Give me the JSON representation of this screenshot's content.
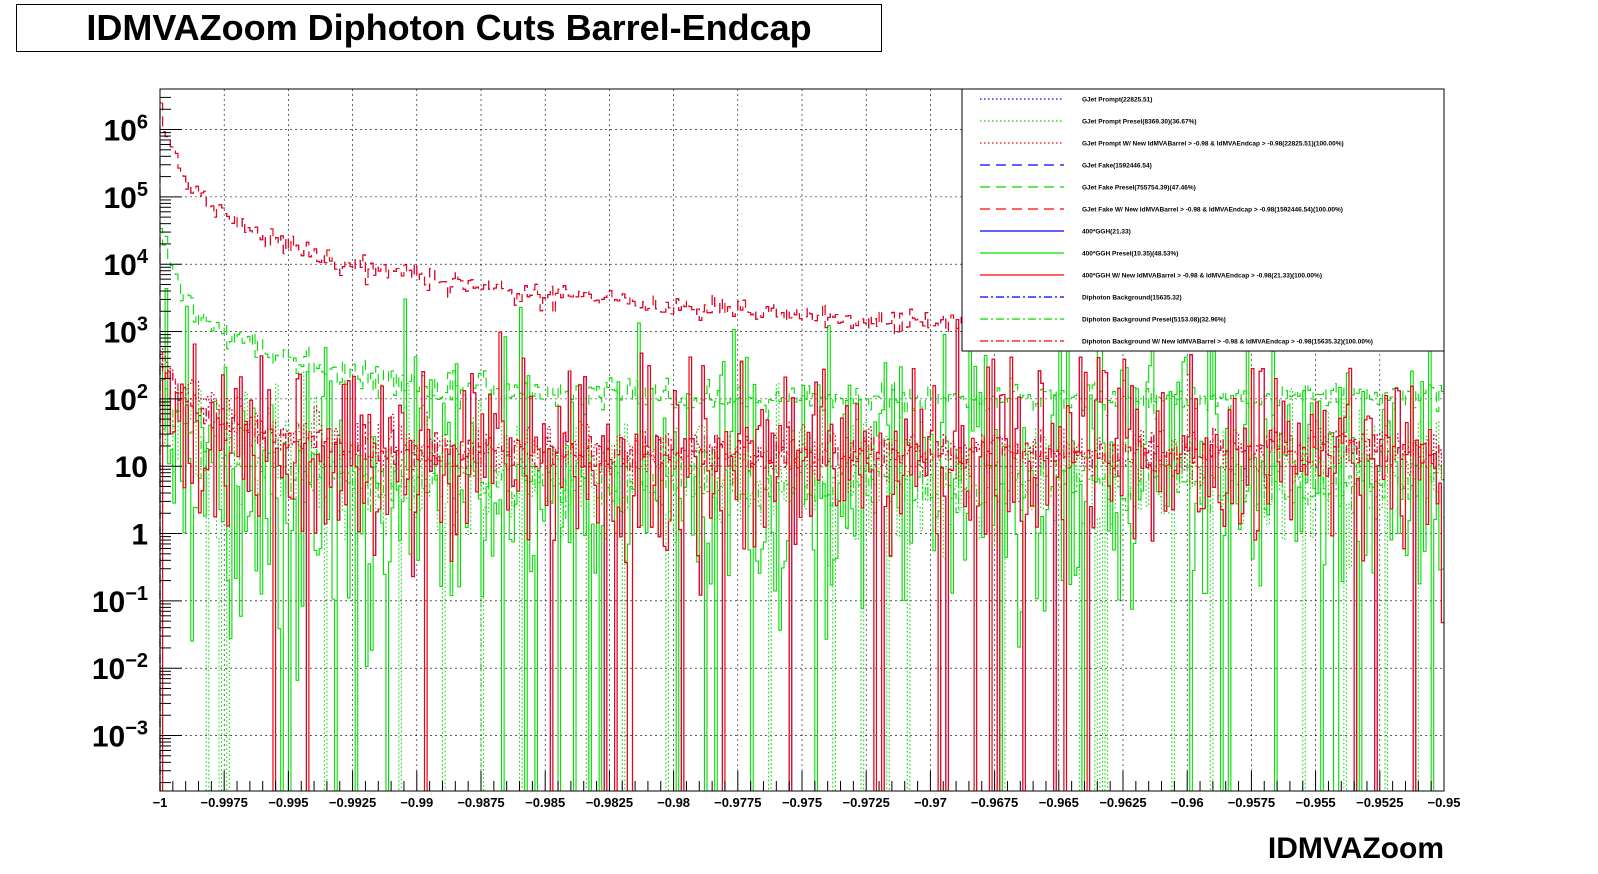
{
  "title": "IDMVAZoom Diphoton Cuts Barrel-Endcap",
  "chart_data": {
    "type": "line",
    "subtype": "step-histogram",
    "title": "IDMVAZoom Diphoton Cuts Barrel-Endcap",
    "xlabel": "IDMVAZoom",
    "ylabel": "",
    "xlim": [
      -1,
      -0.95
    ],
    "ylim": [
      0.00015,
      4000000
    ],
    "yscale": "log",
    "grid": true,
    "legend_position": "top-right",
    "x_tick_labels": [
      "−1",
      "−0.9975",
      "−0.995",
      "−0.9925",
      "−0.99",
      "−0.9875",
      "−0.985",
      "−0.9825",
      "−0.98",
      "−0.9775",
      "−0.975",
      "−0.9725",
      "−0.97",
      "−0.9675",
      "−0.965",
      "−0.9625",
      "−0.96",
      "−0.9575",
      "−0.955",
      "−0.9525",
      "−0.95"
    ],
    "x_tick_values": [
      -1,
      -0.9975,
      -0.995,
      -0.9925,
      -0.99,
      -0.9875,
      -0.985,
      -0.9825,
      -0.98,
      -0.9775,
      -0.975,
      -0.9725,
      -0.97,
      -0.9675,
      -0.965,
      -0.9625,
      -0.96,
      -0.9575,
      -0.955,
      -0.9525,
      -0.95
    ],
    "y_ticks": [
      {
        "value": 1000000,
        "base": "10",
        "exp": "6"
      },
      {
        "value": 100000,
        "base": "10",
        "exp": "5"
      },
      {
        "value": 10000,
        "base": "10",
        "exp": "4"
      },
      {
        "value": 1000,
        "base": "10",
        "exp": "3"
      },
      {
        "value": 100,
        "base": "10",
        "exp": "2"
      },
      {
        "value": 10,
        "base": "10",
        "exp": ""
      },
      {
        "value": 1,
        "base": "1",
        "exp": ""
      },
      {
        "value": 0.1,
        "base": "10",
        "exp": "−1"
      },
      {
        "value": 0.01,
        "base": "10",
        "exp": "−2"
      },
      {
        "value": 0.001,
        "base": "10",
        "exp": "−3"
      }
    ],
    "series": [
      {
        "name": "GJet Prompt(22825.51)",
        "color": "#0000ff",
        "dash": "dotted",
        "model": {
          "a": 0.001,
          "y0": 400,
          "yf": 9,
          "t": 0.0012,
          "jitter": 0.45,
          "seed": 11
        }
      },
      {
        "name": "GJet Prompt Presel(8369.30)(36.67%)",
        "color": "#00dd00",
        "dash": "dotted",
        "model": {
          "a": 0.001,
          "y0": 150,
          "yf": 3.5,
          "t": 0.0012,
          "jitter": 1.1,
          "seed": 12
        }
      },
      {
        "name": "GJet Prompt W/ New IdMVABarrel > -0.98 & IdMVAEndcap > -0.98(22825.51)(100.00%)",
        "color": "#ff0000",
        "dash": "dotted",
        "model": {
          "a": 0.001,
          "y0": 400,
          "yf": 9,
          "t": 0.0012,
          "jitter": 0.45,
          "seed": 11
        }
      },
      {
        "name": "GJet Fake(1592446.54)",
        "color": "#0000ff",
        "dash": "dashed",
        "model": {
          "a": 0.00022,
          "y0": 3000000,
          "yf": 150,
          "t": 0.0007,
          "jitter": 0.2,
          "seed": 21
        }
      },
      {
        "name": "GJet Fake Presel(755754.39)(47.46%)",
        "color": "#00dd00",
        "dash": "dashed",
        "model": {
          "a": 0.00022,
          "y0": 50000,
          "yf": 55,
          "t": 0.0007,
          "jitter": 0.25,
          "seed": 22
        }
      },
      {
        "name": "GJet Fake W/ New IdMVABarrel > -0.98 & IdMVAEndcap > -0.98(1592446.54)(100.00%)",
        "color": "#ff0000",
        "dash": "dashed",
        "model": {
          "a": 0.00022,
          "y0": 3000000,
          "yf": 150,
          "t": 0.0007,
          "jitter": 0.2,
          "seed": 21
        }
      },
      {
        "name": "400*GGH(21.33)",
        "color": "#0000ff",
        "dash": "solid",
        "model": {
          "a": 0.001,
          "y0": 90,
          "yf": 9,
          "t": 0.0012,
          "jitter": 1.6,
          "seed": 31
        }
      },
      {
        "name": "400*GGH Presel(10.35)(48.53%)",
        "color": "#00dd00",
        "dash": "solid",
        "model": {
          "a": 0.001,
          "y0": 60,
          "yf": 4,
          "t": 0.0012,
          "jitter": 2.4,
          "seed": 32
        }
      },
      {
        "name": "400*GGH W/ New IdMVABarrel > -0.98 & IdMVAEndcap > -0.98(21.33)(100.00%)",
        "color": "#ff0000",
        "dash": "solid",
        "model": {
          "a": 0.001,
          "y0": 90,
          "yf": 9,
          "t": 0.0012,
          "jitter": 1.6,
          "seed": 31
        }
      },
      {
        "name": "Diphoton Background(15635.32)",
        "color": "#0000ff",
        "dash": "dashdot",
        "model": {
          "a": 0.001,
          "y0": 300,
          "yf": 10,
          "t": 0.0012,
          "jitter": 0.3,
          "seed": 41
        }
      },
      {
        "name": "Diphoton Background Presel(5153.08)(32.96%)",
        "color": "#00dd00",
        "dash": "dashdot",
        "model": {
          "a": 0.001,
          "y0": 100,
          "yf": 3.5,
          "t": 0.0012,
          "jitter": 0.5,
          "seed": 42
        }
      },
      {
        "name": "Diphoton Background W/ New IdMVABarrel > -0.98 & IdMVAEndcap > -0.98(15635.32)(100.00%)",
        "color": "#ff0000",
        "dash": "dashdot",
        "model": {
          "a": 0.001,
          "y0": 300,
          "yf": 10,
          "t": 0.0012,
          "jitter": 0.3,
          "seed": 41
        }
      }
    ]
  }
}
